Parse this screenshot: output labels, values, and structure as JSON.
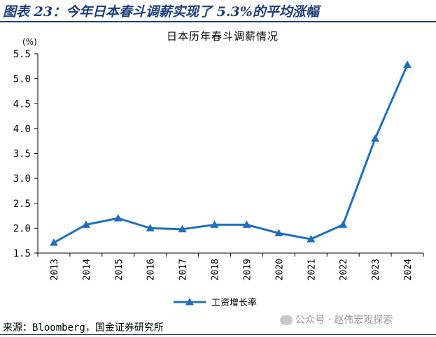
{
  "figure_title": "图表 23：今年日本春斗调薪实现了 5.3%的平均涨幅",
  "source": "来源：Bloomberg，国金证券研究所",
  "watermark": "公众号 · 赵伟宏观探索",
  "colors": {
    "line": "#1f6fbf",
    "heading": "#1f3f7a"
  },
  "icons": {
    "watermark": "wechat-icon"
  },
  "chart_data": {
    "type": "line",
    "title": "日本历年春斗调薪情况",
    "ylabel": "(%)",
    "xlabel": "",
    "categories": [
      "2013",
      "2014",
      "2015",
      "2016",
      "2017",
      "2018",
      "2019",
      "2020",
      "2021",
      "2022",
      "2023",
      "2024"
    ],
    "series": [
      {
        "name": "工资增长率",
        "marker": "triangle",
        "values": [
          1.71,
          2.07,
          2.2,
          2.0,
          1.98,
          2.07,
          2.07,
          1.9,
          1.78,
          2.07,
          3.8,
          5.28
        ]
      }
    ],
    "ylim": [
      1.5,
      5.5
    ],
    "yticks": [
      "1.5",
      "2.0",
      "2.5",
      "3.0",
      "3.5",
      "4.0",
      "4.5",
      "5.0",
      "5.5"
    ],
    "grid": false,
    "legend": "bottom"
  }
}
